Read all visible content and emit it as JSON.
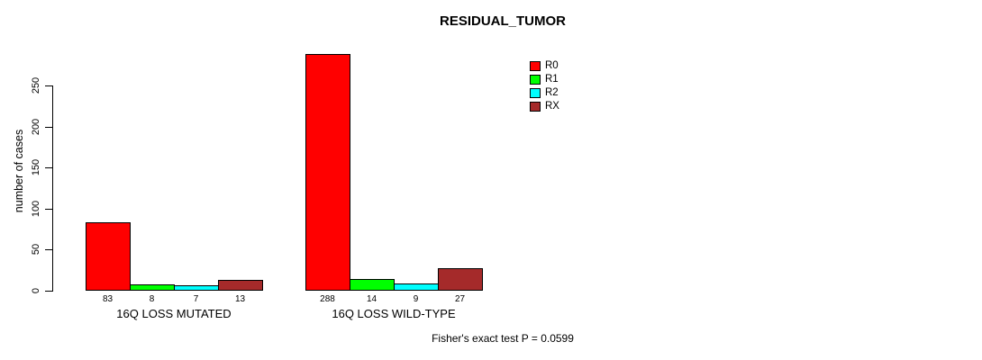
{
  "chart_data": {
    "type": "bar",
    "title": "RESIDUAL_TUMOR",
    "ylabel": "number of cases",
    "xlabel": "",
    "ylim": [
      0,
      250
    ],
    "yticks": [
      0,
      50,
      100,
      150,
      200,
      250
    ],
    "grid": false,
    "legend_position": "top-right-inside",
    "categories": [
      "16Q LOSS MUTATED",
      "16Q LOSS WILD-TYPE"
    ],
    "series": [
      {
        "name": "R0",
        "color": "#FF0000",
        "values": [
          83,
          288
        ]
      },
      {
        "name": "R1",
        "color": "#00FF00",
        "values": [
          8,
          14
        ]
      },
      {
        "name": "R2",
        "color": "#00FFFF",
        "values": [
          7,
          9
        ]
      },
      {
        "name": "RX",
        "color": "#A52A2A",
        "values": [
          13,
          27
        ]
      }
    ],
    "show_value_labels": true,
    "annotation": "Fisher's exact test P = 0.0599"
  },
  "colors": {
    "background": "#FFFFFF",
    "axis": "#000000",
    "text": "#000000"
  }
}
